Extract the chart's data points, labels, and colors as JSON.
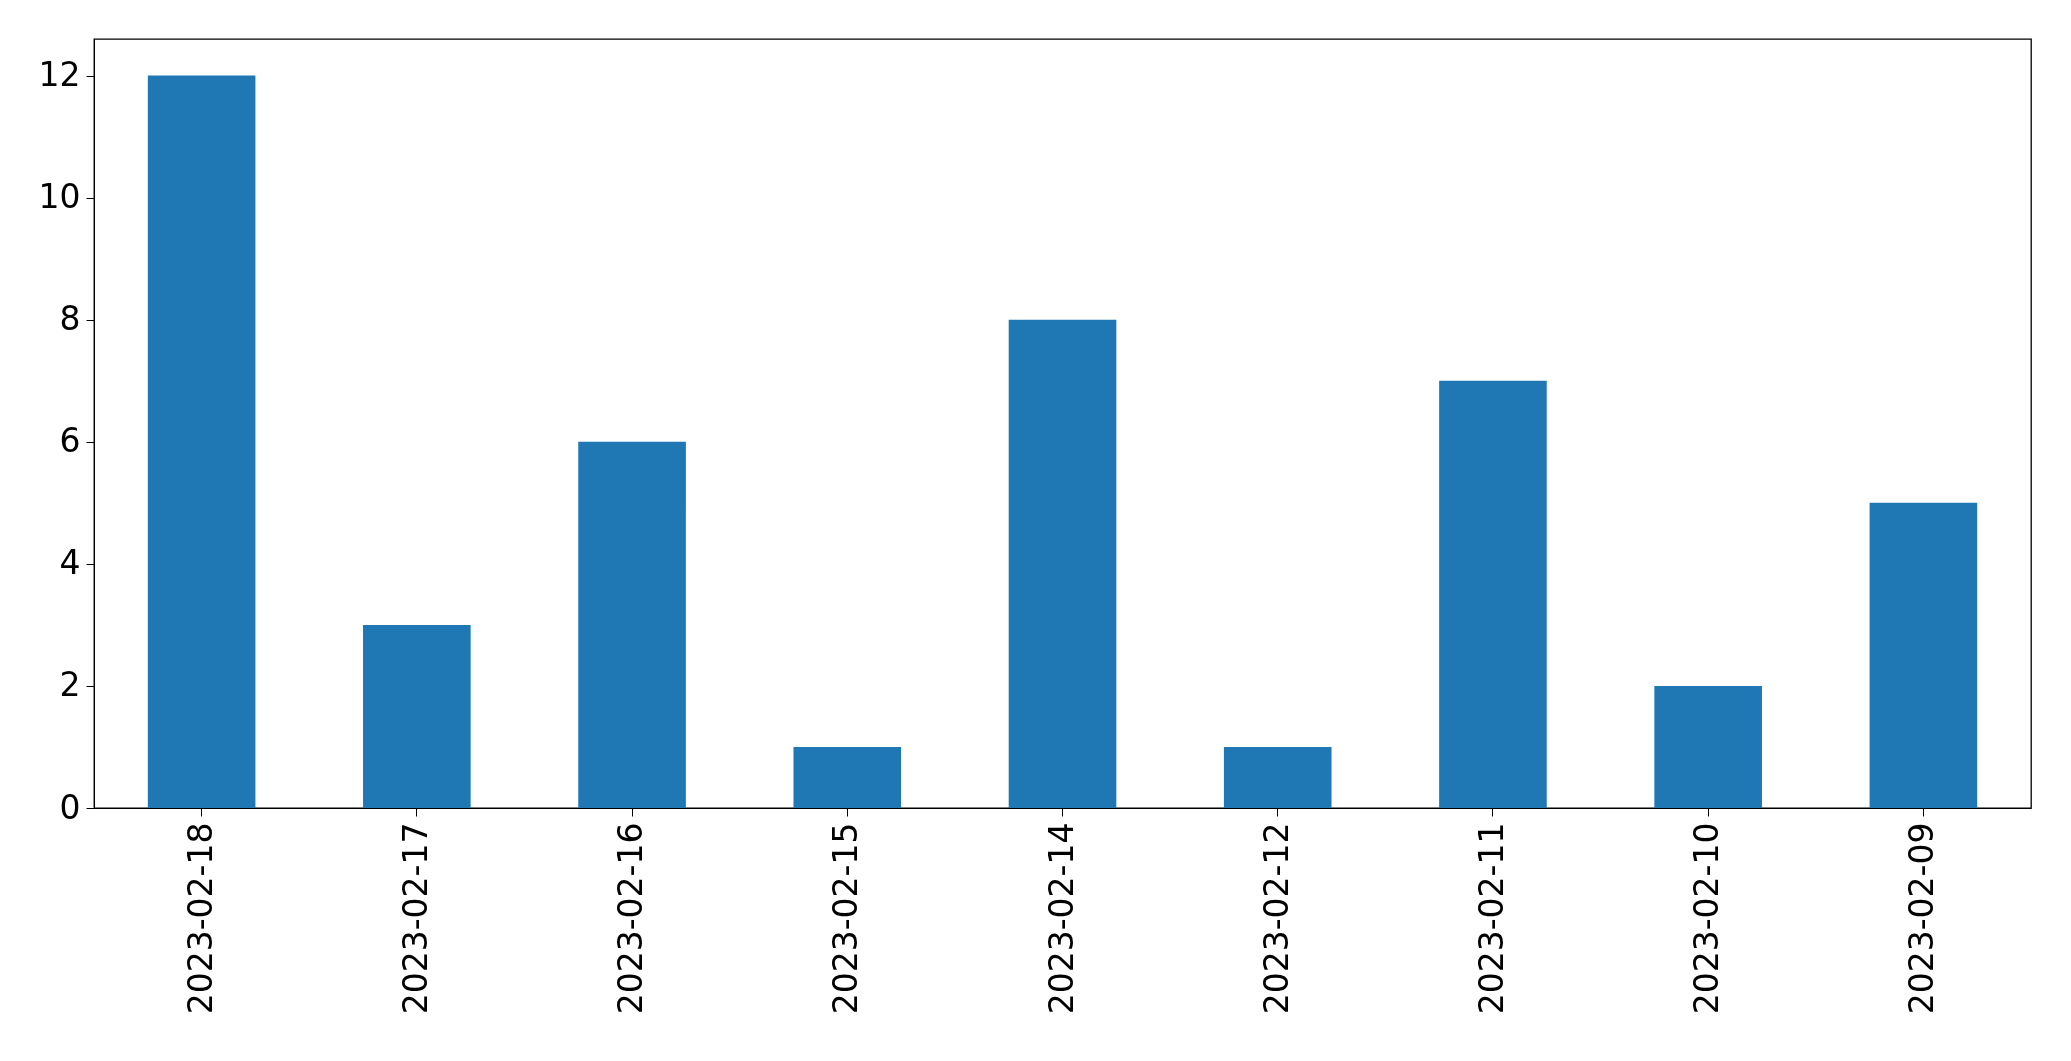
{
  "chart_data": {
    "type": "bar",
    "categories": [
      "2023-02-18",
      "2023-02-17",
      "2023-02-16",
      "2023-02-15",
      "2023-02-14",
      "2023-02-12",
      "2023-02-11",
      "2023-02-10",
      "2023-02-09"
    ],
    "values": [
      12,
      3,
      6,
      1,
      8,
      1,
      7,
      2,
      5
    ],
    "color": "#1f77b4",
    "ylim": [
      0,
      12.6
    ],
    "yticks": [
      0,
      2,
      4,
      6,
      8,
      10,
      12
    ],
    "grid": false
  }
}
